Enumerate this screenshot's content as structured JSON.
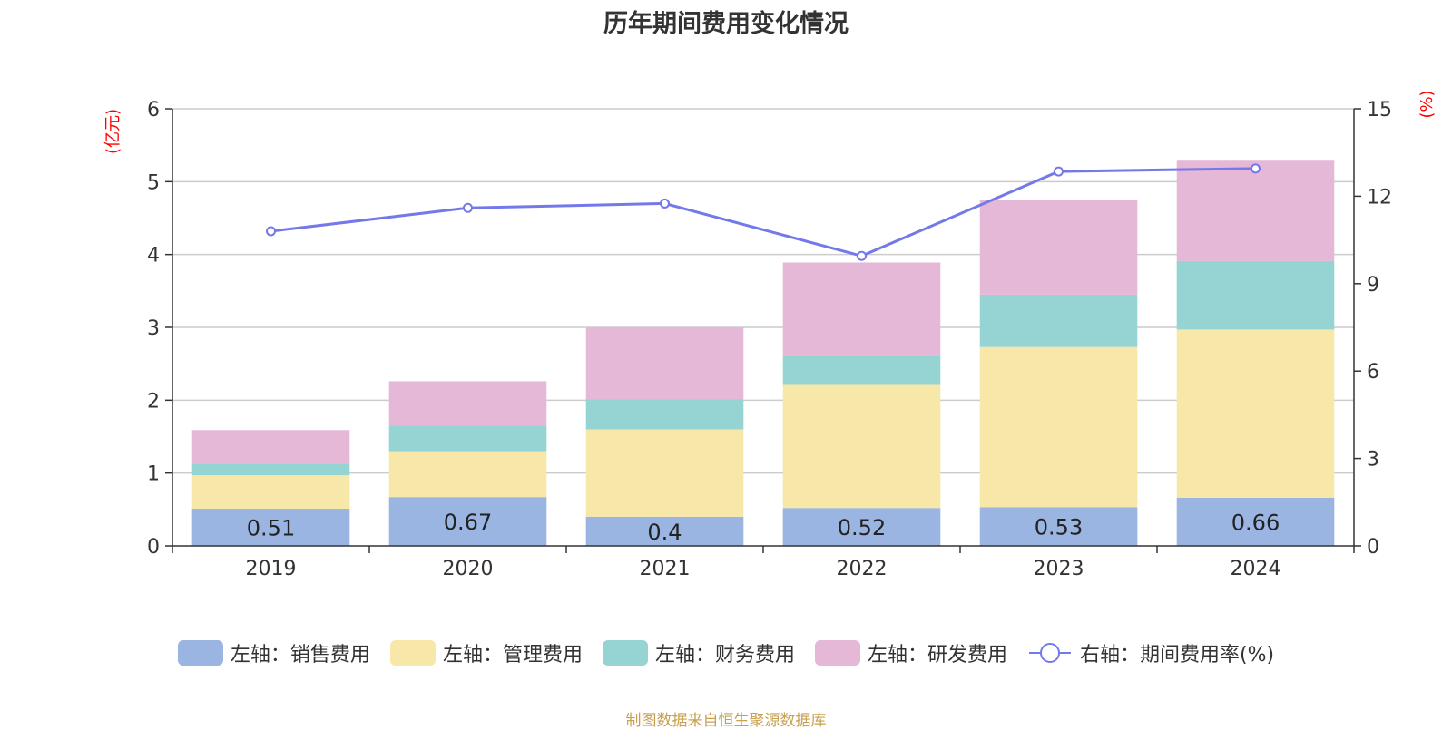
{
  "title": "历年期间费用变化情况",
  "source_note": "制图数据来自恒生聚源数据库",
  "legend": {
    "items": [
      {
        "label": "左轴：销售费用",
        "color": "#9ab5e1",
        "kind": "bar"
      },
      {
        "label": "左轴：管理费用",
        "color": "#f7e7a8",
        "kind": "bar"
      },
      {
        "label": "左轴：财务费用",
        "color": "#96d3d3",
        "kind": "bar"
      },
      {
        "label": "左轴：研发费用",
        "color": "#e6b8d8",
        "kind": "bar"
      },
      {
        "label": "右轴：期间费用率(%)",
        "color": "#7479ea",
        "kind": "line"
      }
    ]
  },
  "chart_data": {
    "type": "bar",
    "stacked": true,
    "categories": [
      "2019",
      "2020",
      "2021",
      "2022",
      "2023",
      "2024"
    ],
    "y_left": {
      "label": "(亿元)",
      "ylim": [
        0,
        6
      ],
      "ticks": [
        0,
        1,
        2,
        3,
        4,
        5,
        6
      ]
    },
    "y_right": {
      "label": "(%)",
      "ylim": [
        0,
        15
      ],
      "ticks": [
        0,
        3,
        6,
        9,
        12,
        15
      ]
    },
    "grid": true,
    "legend_position": "bottom",
    "series": [
      {
        "name": "左轴：销售费用",
        "axis": "left",
        "color": "#9ab5e1",
        "values": [
          0.51,
          0.67,
          0.4,
          0.52,
          0.53,
          0.66
        ],
        "show_labels": true
      },
      {
        "name": "左轴：管理费用",
        "axis": "left",
        "color": "#f7e7a8",
        "values": [
          0.46,
          0.63,
          1.2,
          1.69,
          2.2,
          2.31
        ]
      },
      {
        "name": "左轴：财务费用",
        "axis": "left",
        "color": "#96d3d3",
        "values": [
          0.16,
          0.35,
          0.41,
          0.4,
          0.72,
          0.94
        ]
      },
      {
        "name": "左轴：研发费用",
        "axis": "left",
        "color": "#e6b8d8",
        "values": [
          0.46,
          0.61,
          0.99,
          1.28,
          1.3,
          1.39
        ]
      },
      {
        "name": "右轴：期间费用率(%)",
        "axis": "right",
        "type": "line",
        "color": "#7479ea",
        "values": [
          10.8,
          11.6,
          11.75,
          9.95,
          12.85,
          12.95
        ]
      }
    ]
  }
}
